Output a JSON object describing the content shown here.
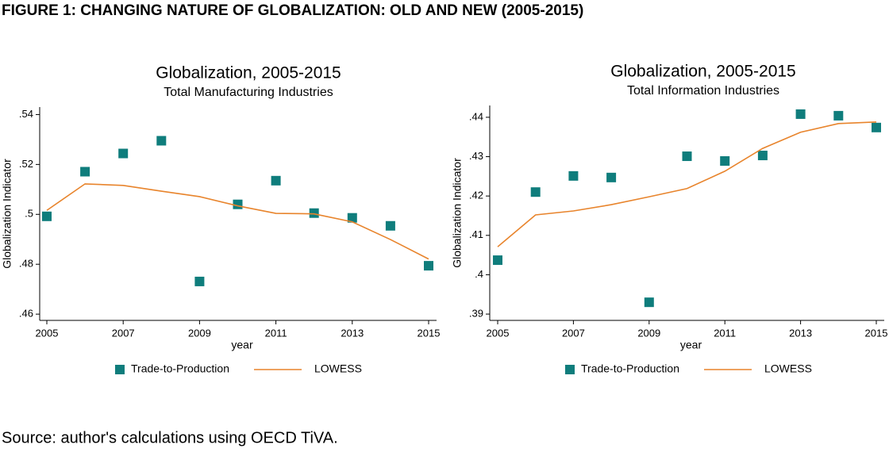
{
  "header": {
    "title": "FIGURE 1: CHANGING NATURE OF GLOBALIZATION: OLD AND NEW (2005-2015)"
  },
  "source": "Source: author's calculations using OECD TiVA.",
  "chart_data": [
    {
      "type": "scatter",
      "title": "Globalization, 2005-2015",
      "subtitle": "Total Manufacturing Industries",
      "x_label": "year",
      "y_label": "Globalization Indicator",
      "x": [
        2005,
        2006,
        2007,
        2008,
        2009,
        2010,
        2011,
        2012,
        2013,
        2014,
        2015
      ],
      "series": [
        {
          "name": "Trade-to-Production",
          "type": "scatter",
          "color": "#0f7d7c",
          "values": [
            0.4992,
            0.5171,
            0.5244,
            0.5295,
            0.4731,
            0.504,
            0.5135,
            0.5005,
            0.4986,
            0.4954,
            0.4794
          ]
        },
        {
          "name": "LOWESS",
          "type": "line",
          "color": "#e8842c",
          "values": [
            0.5016,
            0.5122,
            0.5116,
            0.5093,
            0.5071,
            0.5034,
            0.5004,
            0.5002,
            0.497,
            0.4899,
            0.4821
          ]
        }
      ],
      "xlim": [
        2005,
        2015
      ],
      "ylim": [
        0.4575,
        0.543
      ],
      "xticks": [
        2005,
        2007,
        2009,
        2011,
        2013,
        2015
      ],
      "yticks": [
        {
          "value": 0.46,
          "label": ".46"
        },
        {
          "value": 0.48,
          "label": ".48"
        },
        {
          "value": 0.5,
          "label": ".5"
        },
        {
          "value": 0.52,
          "label": ".52"
        },
        {
          "value": 0.54,
          "label": ".54"
        }
      ]
    },
    {
      "type": "scatter",
      "title": "Globalization, 2005-2015",
      "subtitle": "Total Information Industries",
      "x_label": "year",
      "y_label": "Globalization Indicator",
      "x": [
        2005,
        2006,
        2007,
        2008,
        2009,
        2010,
        2011,
        2012,
        2013,
        2014,
        2015
      ],
      "series": [
        {
          "name": "Trade-to-Production",
          "type": "scatter",
          "color": "#0f7d7c",
          "values": [
            0.4037,
            0.421,
            0.4251,
            0.4247,
            0.393,
            0.4301,
            0.4289,
            0.4303,
            0.4408,
            0.4404,
            0.4374
          ]
        },
        {
          "name": "LOWESS",
          "type": "line",
          "color": "#e8842c",
          "values": [
            0.4071,
            0.4152,
            0.4162,
            0.4178,
            0.4198,
            0.4219,
            0.4263,
            0.4321,
            0.4362,
            0.4384,
            0.4388
          ]
        }
      ],
      "xlim": [
        2005,
        2015
      ],
      "ylim": [
        0.3884,
        0.443
      ],
      "xticks": [
        2005,
        2007,
        2009,
        2011,
        2013,
        2015
      ],
      "yticks": [
        {
          "value": 0.39,
          "label": ".39"
        },
        {
          "value": 0.4,
          "label": ".4"
        },
        {
          "value": 0.41,
          "label": ".41"
        },
        {
          "value": 0.42,
          "label": ".42"
        },
        {
          "value": 0.43,
          "label": ".43"
        },
        {
          "value": 0.44,
          "label": ".44"
        }
      ]
    }
  ]
}
